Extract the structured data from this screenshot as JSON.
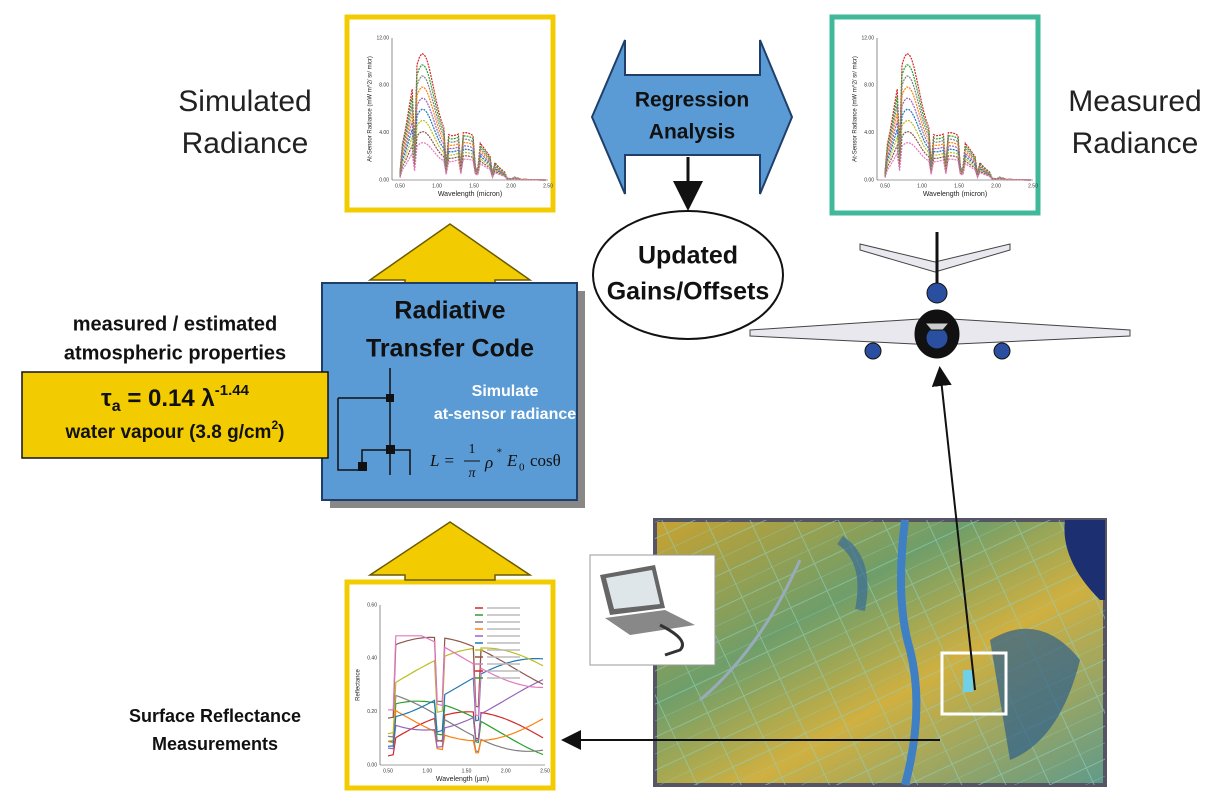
{
  "simulated_label": [
    "Simulated",
    "Radiance"
  ],
  "measured_label": [
    "Measured",
    "Radiance"
  ],
  "regression": [
    "Regression",
    "Analysis"
  ],
  "updated": [
    "Updated",
    "Gains/Offsets"
  ],
  "rtc": {
    "title": [
      "Radiative",
      "Transfer Code"
    ],
    "simulate": [
      "Simulate",
      "at-sensor radiance"
    ],
    "formula": {
      "lhs": "L =",
      "num": "1",
      "den": "π",
      "rho": "ρ",
      "rho_sup": "*",
      "e": "E",
      "e_sub": "0",
      "cos": "cosθ"
    }
  },
  "atmos": {
    "heading": [
      "measured / estimated",
      "atmospheric properties"
    ],
    "tau": {
      "tau": "τ",
      "sub": "a",
      "eq": " = 0.14 λ",
      "exp": "-1.44"
    },
    "vapour": {
      "text": "water vapour (3.8 g/cm",
      "sup": "2",
      "close": ")"
    }
  },
  "surface_label": [
    "Surface Reflectance",
    "Measurements"
  ],
  "radiance_thumb": {
    "ylabel": "At-Sensor Radiance (mW m^2/ sr/ micr)",
    "xlabel": "Wavelength (micron)",
    "yticks": [
      "0.00",
      "4.00",
      "8.00",
      "12.00"
    ],
    "xticks": [
      "0.50",
      "1.00",
      "1.50",
      "2.00",
      "2.50"
    ]
  },
  "reflectance_thumb": {
    "ylabel": "Reflectance",
    "xlabel": "Wavelength (µm)",
    "yticks": [
      "0.00",
      "0.20",
      "0.40",
      "0.60"
    ],
    "xticks": [
      "0.50",
      "1.00",
      "1.50",
      "2.00",
      "2.50"
    ]
  }
}
